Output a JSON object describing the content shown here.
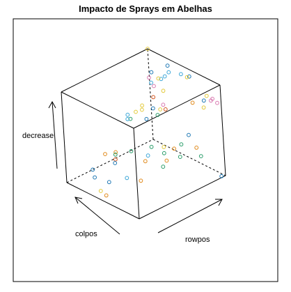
{
  "chart_data": {
    "type": "scatter",
    "subtype": "3d-scatterplot-cube",
    "title": "Impacto de Sprays em Abelhas",
    "xlabel": "colpos",
    "ylabel": "rowpos",
    "zlabel": "decrease",
    "xlim": [
      0,
      1
    ],
    "ylim": [
      0,
      1
    ],
    "zlim": [
      0,
      1
    ],
    "box": true,
    "grid": false,
    "legend": "none",
    "colors": {
      "blue": "#1f78b4",
      "orange": "#e08a1c",
      "green": "#2a9d6a",
      "pink": "#d979b0",
      "yellow": "#e3c93a",
      "sky": "#3ca7d8",
      "red": "#d2551f"
    },
    "points": [
      {
        "x": 0.0,
        "y": 1.0,
        "z": 1.0,
        "color": "yellow"
      },
      {
        "x": 0.35,
        "y": 0.75,
        "z": 1.0,
        "color": "blue"
      },
      {
        "x": 0.47,
        "y": 0.85,
        "z": 1.0,
        "color": "sky"
      },
      {
        "x": 0.37,
        "y": 0.92,
        "z": 1.0,
        "color": "blue"
      },
      {
        "x": 0.5,
        "y": 0.78,
        "z": 1.0,
        "color": "sky"
      },
      {
        "x": 0.42,
        "y": 0.8,
        "z": 0.93,
        "color": "sky"
      },
      {
        "x": 0.58,
        "y": 0.9,
        "z": 1.0,
        "color": "sky"
      },
      {
        "x": 0.67,
        "y": 0.92,
        "z": 1.0,
        "color": "blue"
      },
      {
        "x": 0.6,
        "y": 0.95,
        "z": 0.95,
        "color": "yellow"
      },
      {
        "x": 0.38,
        "y": 0.8,
        "z": 0.92,
        "color": "yellow"
      },
      {
        "x": 0.3,
        "y": 0.78,
        "z": 0.85,
        "color": "sky"
      },
      {
        "x": 0.02,
        "y": 0.98,
        "z": 0.7,
        "color": "pink"
      },
      {
        "x": 0.12,
        "y": 0.95,
        "z": 0.66,
        "color": "pink"
      },
      {
        "x": 0.25,
        "y": 0.95,
        "z": 0.66,
        "color": "yellow"
      },
      {
        "x": 0.14,
        "y": 0.92,
        "z": 0.56,
        "color": "red"
      },
      {
        "x": 0.3,
        "y": 0.9,
        "z": 0.55,
        "color": "pink"
      },
      {
        "x": 0.1,
        "y": 0.82,
        "z": 0.5,
        "color": "yellow"
      },
      {
        "x": 0.12,
        "y": 0.8,
        "z": 0.47,
        "color": "yellow"
      },
      {
        "x": 0.08,
        "y": 0.76,
        "z": 0.45,
        "color": "yellow"
      },
      {
        "x": 0.0,
        "y": 0.73,
        "z": 0.4,
        "color": "sky"
      },
      {
        "x": 0.05,
        "y": 0.72,
        "z": 0.38,
        "color": "green"
      },
      {
        "x": 0.02,
        "y": 0.71,
        "z": 0.37,
        "color": "sky"
      },
      {
        "x": 0.24,
        "y": 0.75,
        "z": 0.44,
        "color": "blue"
      },
      {
        "x": 0.28,
        "y": 0.8,
        "z": 0.55,
        "color": "blue"
      },
      {
        "x": 0.3,
        "y": 0.83,
        "z": 0.47,
        "color": "green"
      },
      {
        "x": 0.28,
        "y": 0.88,
        "z": 0.5,
        "color": "yellow"
      },
      {
        "x": 0.38,
        "y": 0.86,
        "z": 0.55,
        "color": "red"
      },
      {
        "x": 0.8,
        "y": 1.0,
        "z": 0.8,
        "color": "yellow"
      },
      {
        "x": 0.88,
        "y": 1.0,
        "z": 0.8,
        "color": "pink"
      },
      {
        "x": 0.92,
        "y": 0.95,
        "z": 0.82,
        "color": "pink"
      },
      {
        "x": 0.97,
        "y": 0.98,
        "z": 0.8,
        "color": "pink"
      },
      {
        "x": 0.82,
        "y": 0.95,
        "z": 0.78,
        "color": "blue"
      },
      {
        "x": 0.72,
        "y": 0.9,
        "z": 0.74,
        "color": "orange"
      },
      {
        "x": 0.85,
        "y": 0.92,
        "z": 0.73,
        "color": "yellow"
      },
      {
        "x": 0.0,
        "y": 0.45,
        "z": 0.1,
        "color": "orange"
      },
      {
        "x": 0.0,
        "y": 0.3,
        "z": 0.0,
        "color": "blue"
      },
      {
        "x": 0.08,
        "y": 0.5,
        "z": 0.05,
        "color": "red"
      },
      {
        "x": 0.24,
        "y": 0.38,
        "z": 0.25,
        "color": "orange"
      },
      {
        "x": 0.35,
        "y": 0.7,
        "z": 0.2,
        "color": "green"
      },
      {
        "x": 0.42,
        "y": 0.6,
        "z": 0.18,
        "color": "sky"
      },
      {
        "x": 0.44,
        "y": 0.55,
        "z": 0.15,
        "color": "orange"
      },
      {
        "x": 0.5,
        "y": 0.72,
        "z": 0.25,
        "color": "yellow"
      },
      {
        "x": 0.55,
        "y": 0.68,
        "z": 0.22,
        "color": "green"
      },
      {
        "x": 0.62,
        "y": 0.74,
        "z": 0.27,
        "color": "orange"
      },
      {
        "x": 0.58,
        "y": 0.68,
        "z": 0.15,
        "color": "orange"
      },
      {
        "x": 0.6,
        "y": 0.62,
        "z": 0.12,
        "color": "green"
      },
      {
        "x": 0.65,
        "y": 0.8,
        "z": 0.3,
        "color": "green"
      },
      {
        "x": 0.7,
        "y": 0.85,
        "z": 0.4,
        "color": "blue"
      },
      {
        "x": 0.75,
        "y": 0.7,
        "z": 0.25,
        "color": "green"
      },
      {
        "x": 0.8,
        "y": 0.85,
        "z": 0.3,
        "color": "orange"
      },
      {
        "x": 0.82,
        "y": 0.88,
        "z": 0.2,
        "color": "green"
      },
      {
        "x": 0.98,
        "y": 0.97,
        "z": 0.0,
        "color": "blue"
      },
      {
        "x": 0.35,
        "y": 0.2,
        "z": 0.05,
        "color": "blue"
      },
      {
        "x": 0.25,
        "y": 0.12,
        "z": 0.1,
        "color": "blue"
      },
      {
        "x": 0.45,
        "y": 0.2,
        "z": 0.3,
        "color": "blue"
      },
      {
        "x": 0.4,
        "y": 0.25,
        "z": 0.35,
        "color": "green"
      },
      {
        "x": 0.35,
        "y": 0.1,
        "z": 0.0,
        "color": "yellow"
      },
      {
        "x": 0.45,
        "y": 0.08,
        "z": 0.0,
        "color": "orange"
      },
      {
        "x": 0.48,
        "y": 0.3,
        "z": 0.1,
        "color": "sky"
      },
      {
        "x": 0.55,
        "y": 0.4,
        "z": 0.05,
        "color": "orange"
      },
      {
        "x": 0.5,
        "y": 0.35,
        "z": 0.38,
        "color": "green"
      }
    ]
  }
}
